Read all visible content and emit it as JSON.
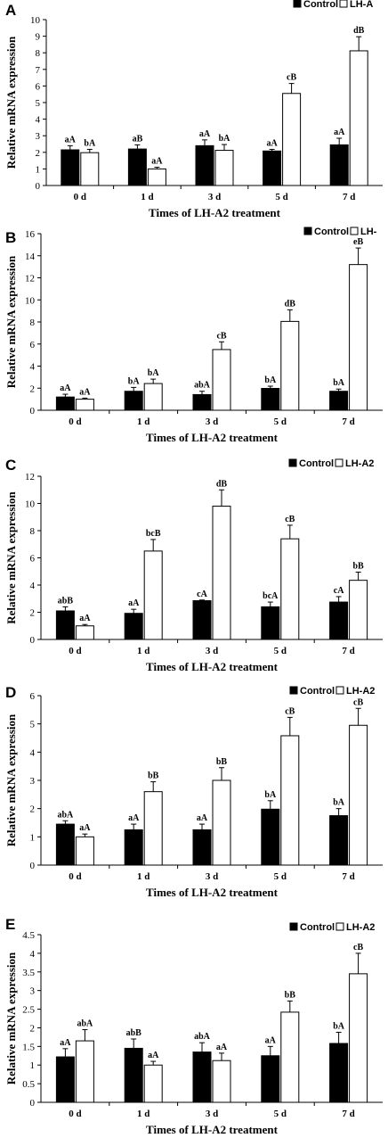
{
  "chart_data": [
    {
      "type": "bar",
      "panel": "A",
      "categories": [
        "0 d",
        "1 d",
        "3 d",
        "5 d",
        "7 d"
      ],
      "xlabel": "Times of LH-A2 treatment",
      "ylabel": "Relative mRNA expression",
      "ylim": [
        0,
        10
      ],
      "yticks": [
        0,
        1,
        2,
        3,
        4,
        5,
        6,
        7,
        8,
        9,
        10
      ],
      "legend": [
        "Control",
        "LH-A"
      ],
      "series": [
        {
          "name": "Control",
          "values": [
            2.15,
            2.2,
            2.4,
            2.08,
            2.45
          ],
          "errors": [
            0.25,
            0.25,
            0.35,
            0.1,
            0.4
          ],
          "labels": [
            "aA",
            "aB",
            "aA",
            "aA",
            "aA"
          ]
        },
        {
          "name": "LH-A",
          "values": [
            1.98,
            1.0,
            2.12,
            5.55,
            8.12
          ],
          "errors": [
            0.2,
            0.1,
            0.35,
            0.6,
            0.85
          ],
          "labels": [
            "bA",
            "aA",
            "bA",
            "cB",
            "dB"
          ]
        }
      ]
    },
    {
      "type": "bar",
      "panel": "B",
      "categories": [
        "0 d",
        "1 d",
        "3 d",
        "5 d",
        "7 d"
      ],
      "xlabel": "Times of LH-A2 treatment",
      "ylabel": "Relative mRNA expression",
      "ylim": [
        0,
        16
      ],
      "yticks": [
        0,
        2,
        4,
        6,
        8,
        10,
        12,
        14,
        16
      ],
      "legend": [
        "Control",
        "LH-"
      ],
      "series": [
        {
          "name": "Control",
          "values": [
            1.2,
            1.72,
            1.42,
            1.98,
            1.72
          ],
          "errors": [
            0.25,
            0.35,
            0.3,
            0.2,
            0.2
          ],
          "labels": [
            "aA",
            "bA",
            "abA",
            "bA",
            "bA"
          ]
        },
        {
          "name": "LH-",
          "values": [
            1.0,
            2.42,
            5.5,
            8.05,
            13.2
          ],
          "errors": [
            0.1,
            0.4,
            0.7,
            1.05,
            1.5
          ],
          "labels": [
            "aA",
            "bA",
            "cB",
            "dB",
            "eB"
          ]
        }
      ]
    },
    {
      "type": "bar",
      "panel": "C",
      "categories": [
        "0 d",
        "1 d",
        "3 d",
        "5 d",
        "7 d"
      ],
      "xlabel": "Times of LH-A2 treatment",
      "ylabel": "Relative mRNA expression",
      "ylim": [
        0,
        12
      ],
      "yticks": [
        0,
        2,
        4,
        6,
        8,
        10,
        12
      ],
      "legend": [
        "Control",
        "LH-A2"
      ],
      "series": [
        {
          "name": "Control",
          "values": [
            2.1,
            1.92,
            2.85,
            2.4,
            2.75
          ],
          "errors": [
            0.3,
            0.3,
            0.05,
            0.35,
            0.4
          ],
          "labels": [
            "abB",
            "aA",
            "cA",
            "bcA",
            "cA"
          ]
        },
        {
          "name": "LH-A2",
          "values": [
            1.0,
            6.5,
            9.8,
            7.4,
            4.35
          ],
          "errors": [
            0.1,
            0.85,
            1.2,
            1.0,
            0.6
          ],
          "labels": [
            "aA",
            "bcB",
            "dB",
            "cB",
            "bB"
          ]
        }
      ]
    },
    {
      "type": "bar",
      "panel": "D",
      "categories": [
        "0 d",
        "1 d",
        "3 d",
        "5 d",
        "7 d"
      ],
      "xlabel": "Times of LH-A2 treatment",
      "ylabel": "Relative mRNA expression",
      "ylim": [
        0,
        6
      ],
      "yticks": [
        0,
        1,
        2,
        3,
        4,
        5,
        6
      ],
      "legend": [
        "Control",
        "LH-A2"
      ],
      "series": [
        {
          "name": "Control",
          "values": [
            1.45,
            1.25,
            1.25,
            1.98,
            1.75
          ],
          "errors": [
            0.12,
            0.2,
            0.2,
            0.3,
            0.25
          ],
          "labels": [
            "abA",
            "aA",
            "aA",
            "bA",
            "bA"
          ]
        },
        {
          "name": "LH-A2",
          "values": [
            1.0,
            2.6,
            3.0,
            4.58,
            4.95
          ],
          "errors": [
            0.1,
            0.35,
            0.45,
            0.65,
            0.6
          ],
          "labels": [
            "aA",
            "bB",
            "bB",
            "cB",
            "cB"
          ]
        }
      ]
    },
    {
      "type": "bar",
      "panel": "E",
      "categories": [
        "0 d",
        "1 d",
        "3 d",
        "5 d",
        "7 d"
      ],
      "xlabel": "Times of LH-A2 treatment",
      "ylabel": "Relative mRNA expression",
      "ylim": [
        0,
        4.5
      ],
      "yticks": [
        0,
        0.5,
        1,
        1.5,
        2,
        2.5,
        3,
        3.5,
        4,
        4.5
      ],
      "yticklabels": [
        "0",
        "0.5",
        "1",
        "1.5",
        "2",
        "2.5",
        "3",
        "3.5",
        "4",
        "4.5"
      ],
      "legend": [
        "Control",
        "LH-A2"
      ],
      "series": [
        {
          "name": "Control",
          "values": [
            1.22,
            1.45,
            1.35,
            1.25,
            1.58
          ],
          "errors": [
            0.22,
            0.25,
            0.25,
            0.25,
            0.3
          ],
          "labels": [
            "aA",
            "abB",
            "abA",
            "aA",
            "bA"
          ]
        },
        {
          "name": "LH-A2",
          "values": [
            1.65,
            1.0,
            1.12,
            2.42,
            3.45
          ],
          "errors": [
            0.3,
            0.1,
            0.2,
            0.3,
            0.55
          ],
          "labels": [
            "abA",
            "aA",
            "aA",
            "bB",
            "cB"
          ]
        }
      ]
    }
  ]
}
